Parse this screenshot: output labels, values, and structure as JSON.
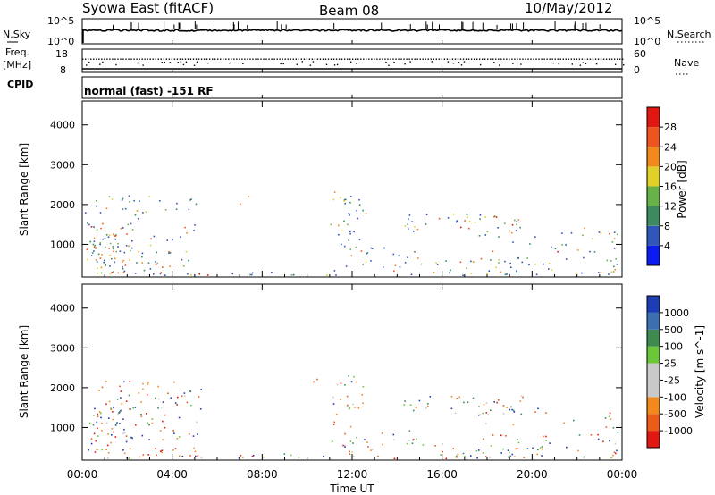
{
  "header": {
    "station": "Syowa East (fitACF)",
    "beam": "Beam 08",
    "date": "10/May/2012"
  },
  "strips": {
    "nsky_label": "N.Sky",
    "nsearch_label": "N.Search",
    "noise_ticks": [
      "10^5",
      "10^0"
    ],
    "freq_label_top": "Freq.",
    "freq_label_unit": "[MHz]",
    "freq_ticks": [
      "18",
      "8"
    ],
    "nave_ticks": [
      "60",
      "0"
    ],
    "nave_label": "Nave",
    "cpid_label": "CPID",
    "cpid_value": "normal (fast) -151 RF"
  },
  "chart_data": [
    {
      "type": "heatmap",
      "name": "power",
      "ylabel": "Slant Range [km]",
      "xlabel": "Time UT",
      "xlim": [
        0,
        24
      ],
      "ylim": [
        180,
        4600
      ],
      "xticks": [
        "00:00",
        "04:00",
        "08:00",
        "12:00",
        "16:00",
        "20:00",
        "00:00"
      ],
      "yticks": [
        1000,
        2000,
        3000,
        4000
      ],
      "colorbar": {
        "label": "Power [dB]",
        "ticks": [
          "4",
          "8",
          "12",
          "16",
          "20",
          "24",
          "28"
        ]
      }
    },
    {
      "type": "heatmap",
      "name": "velocity",
      "ylabel": "Slant Range [km]",
      "xlabel": "Time UT",
      "xlim": [
        0,
        24
      ],
      "ylim": [
        180,
        4600
      ],
      "xticks": [
        "00:00",
        "04:00",
        "08:00",
        "12:00",
        "16:00",
        "20:00",
        "00:00"
      ],
      "yticks": [
        1000,
        2000,
        3000,
        4000
      ],
      "colorbar": {
        "label": "Velocity [m s^-1]",
        "ticks": [
          "1000",
          "500",
          "100",
          "25",
          "-25",
          "-100",
          "-500",
          "-1000"
        ]
      }
    }
  ],
  "colors": {
    "power_scale": [
      "#0a1cf0",
      "#2f56b8",
      "#3d8a5e",
      "#68b24a",
      "#e3cf2a",
      "#f08a1e",
      "#ec5520",
      "#e01812"
    ],
    "velocity_scale": [
      "#1c3db4",
      "#3a6fb0",
      "#3f8a4e",
      "#6cc63a",
      "#c9c9c9",
      "#c9c9c9",
      "#f08a1e",
      "#ea5c1a",
      "#e01812"
    ]
  }
}
